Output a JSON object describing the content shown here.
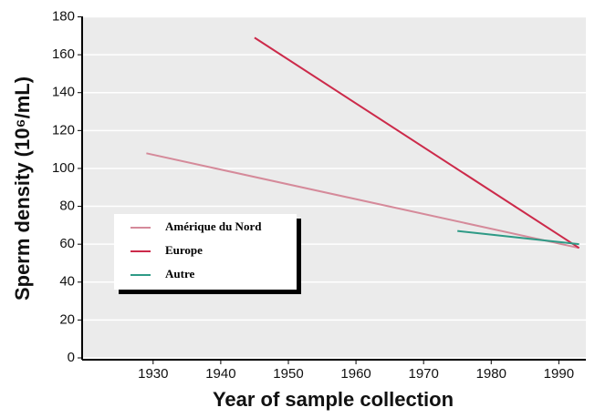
{
  "chart_data": {
    "type": "line",
    "xlabel": "Year of sample collection",
    "ylabel": "Sperm density (10⁶/mL)",
    "series": [
      {
        "name": "Amérique du Nord",
        "color": "#d58a9a",
        "x": [
          1929,
          1993
        ],
        "values": [
          108,
          58
        ]
      },
      {
        "name": "Europe",
        "color": "#cc2a4a",
        "x": [
          1945,
          1993
        ],
        "values": [
          169,
          58
        ]
      },
      {
        "name": "Autre",
        "color": "#2e9a86",
        "x": [
          1975,
          1993
        ],
        "values": [
          67,
          60
        ]
      }
    ],
    "xlim": [
      1919.5,
      1994
    ],
    "xticks": [
      1930,
      1940,
      1950,
      1960,
      1970,
      1980,
      1990
    ],
    "ylim": [
      0,
      180
    ],
    "yticks": [
      0,
      20,
      40,
      60,
      80,
      100,
      120,
      140,
      160,
      180
    ],
    "grid": true,
    "legend": "left"
  }
}
